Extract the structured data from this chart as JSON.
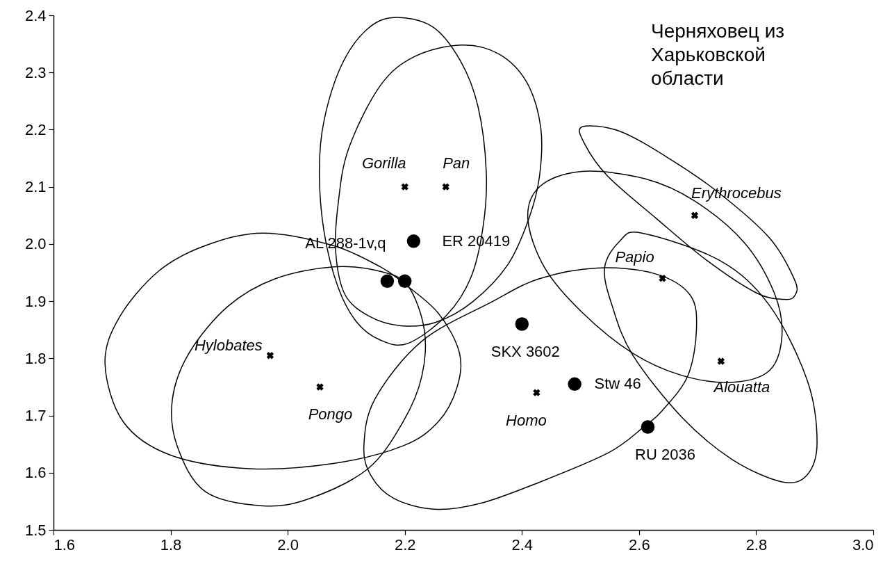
{
  "chart_data": {
    "type": "scatter",
    "xlim": [
      1.6,
      3.0
    ],
    "ylim": [
      1.5,
      2.4
    ],
    "xticks": [
      1.6,
      1.8,
      {
        "value": 2.0,
        "label": "2.0"
      },
      2.2,
      2.4,
      2.6,
      2.8,
      {
        "value": 3.0,
        "label": "3.0"
      }
    ],
    "yticks": [
      1.5,
      1.6,
      1.7,
      1.8,
      1.9,
      {
        "value": 2.0,
        "label": "2.0"
      },
      2.1,
      2.2,
      2.3,
      2.4
    ],
    "series": [
      {
        "marker": "cross",
        "color": "#000000",
        "x": [
          2.2,
          2.27,
          2.695,
          2.64,
          2.74,
          1.97,
          2.055,
          2.425
        ],
        "values": [
          2.1,
          2.1,
          2.05,
          1.94,
          1.795,
          1.805,
          1.75,
          1.74
        ],
        "value_labels": [
          "Gorilla",
          "Pan",
          "Erythrocebus",
          "Papio",
          "Alouatta",
          "Hylobates",
          "Pongo",
          "Homo"
        ]
      },
      {
        "marker": "circle",
        "color": "#000000",
        "x": [
          2.215,
          2.17,
          2.2,
          2.4,
          2.49,
          2.615
        ],
        "values": [
          2.005,
          1.935,
          1.935,
          1.86,
          1.755,
          1.68
        ],
        "value_labels": [
          "ER 20419",
          "AL 288-1v,q",
          null,
          "SKX 3602",
          "Stw 46",
          "RU 2036"
        ]
      }
    ],
    "annotations": [
      "Черняховец из Харьковской области"
    ]
  }
}
